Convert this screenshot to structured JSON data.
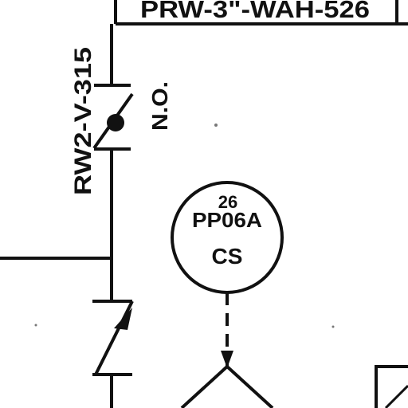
{
  "line_tag": "PRW-3\"-WAH-526",
  "valve": {
    "tag": "RW2-V-315",
    "state": "N.O."
  },
  "instrument": {
    "number": "26",
    "tag": "PP06A",
    "function": "CS"
  },
  "colors": {
    "ink": "#111111",
    "background": "#ffffff"
  }
}
